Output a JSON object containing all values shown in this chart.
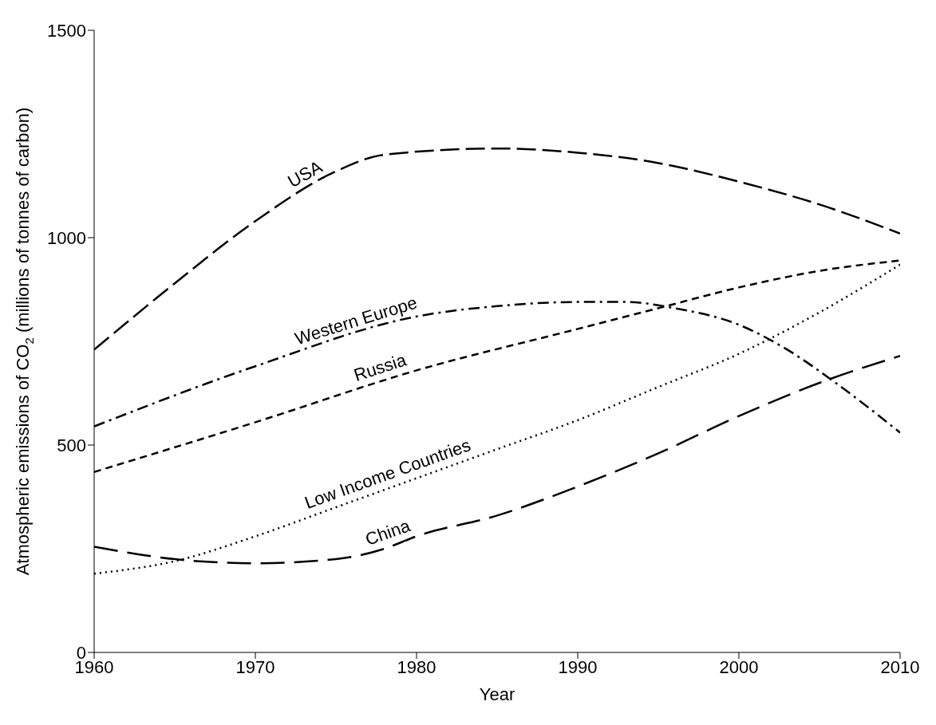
{
  "chart_data": {
    "type": "line",
    "xlabel": "Year",
    "ylabel": "Atmospheric emissions of CO$_{2}$ (millions of tonnes of carbon)",
    "xlim": [
      1960,
      2010
    ],
    "xticks": [
      1960,
      1970,
      1980,
      1990,
      2000,
      2010
    ],
    "ylim": [
      0,
      1500
    ],
    "yticks": [
      0,
      500,
      1000,
      1500
    ],
    "grid": false,
    "legend": false,
    "marker": "none",
    "series": [
      {
        "name": "USA",
        "color": "#000000",
        "line_style": "dashed",
        "x": [
          1960,
          1965,
          1970,
          1975,
          1978,
          1985,
          1990,
          1995,
          2000,
          2005,
          2010
        ],
        "values": [
          730,
          890,
          1040,
          1160,
          1200,
          1215,
          1205,
          1180,
          1135,
          1080,
          1010
        ]
      },
      {
        "name": "Western Europe",
        "color": "#000000",
        "line_style": "dashdot",
        "x": [
          1960,
          1970,
          1980,
          1985,
          1990,
          1993,
          1996,
          2000,
          2003,
          2006,
          2010
        ],
        "values": [
          545,
          690,
          810,
          835,
          845,
          845,
          830,
          790,
          730,
          650,
          530
        ]
      },
      {
        "name": "Russia",
        "color": "#000000",
        "line_style": "dashed",
        "x": [
          1960,
          1970,
          1980,
          1990,
          1995,
          2000,
          2005,
          2010
        ],
        "values": [
          435,
          555,
          680,
          780,
          830,
          880,
          920,
          945
        ]
      },
      {
        "name": "Low Income Countries",
        "color": "#000000",
        "line_style": "dotted",
        "x": [
          1960,
          1965,
          1970,
          1975,
          1980,
          1985,
          1990,
          1995,
          2000,
          2005,
          2010
        ],
        "values": [
          190,
          220,
          280,
          350,
          420,
          490,
          560,
          640,
          720,
          820,
          935
        ]
      },
      {
        "name": "China",
        "color": "#000000",
        "line_style": "dashed",
        "x": [
          1960,
          1965,
          1970,
          1975,
          1978,
          1980,
          1985,
          1990,
          1995,
          2000,
          2005,
          2010
        ],
        "values": [
          255,
          225,
          215,
          225,
          250,
          280,
          330,
          400,
          480,
          570,
          650,
          715
        ]
      }
    ]
  }
}
